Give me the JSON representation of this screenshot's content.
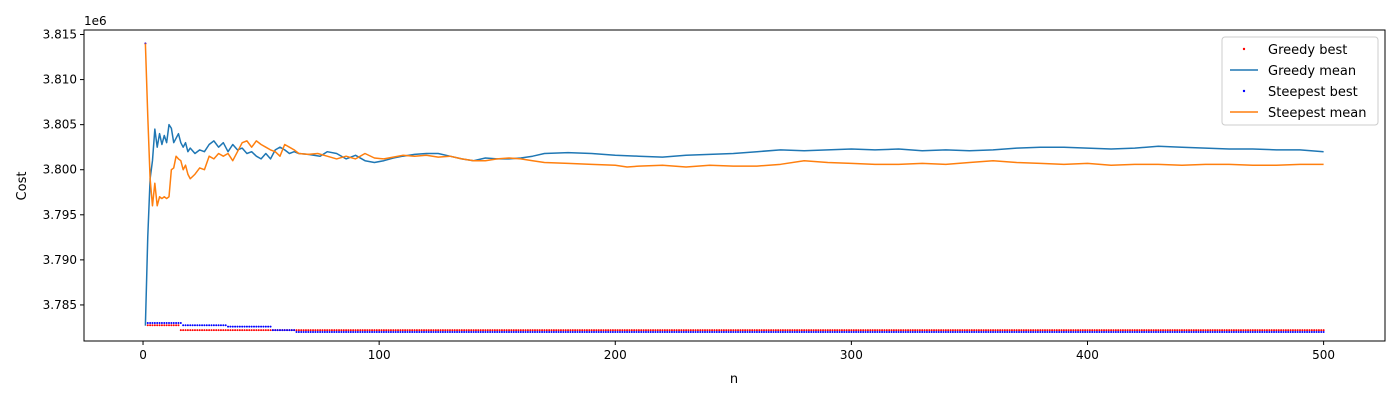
{
  "chart_data": {
    "type": "line",
    "title": "",
    "xlabel": "n",
    "ylabel": "Cost",
    "y_offset_label": "1e6",
    "xlim": [
      -25,
      526
    ],
    "ylim": [
      3.781,
      3.8155
    ],
    "x_ticks": [
      0,
      100,
      200,
      300,
      400,
      500
    ],
    "x_tick_labels": [
      "0",
      "100",
      "200",
      "300",
      "400",
      "500"
    ],
    "y_ticks": [
      3.785,
      3.79,
      3.795,
      3.8,
      3.805,
      3.81,
      3.815
    ],
    "y_tick_labels": [
      "3.785",
      "3.790",
      "3.795",
      "3.800",
      "3.805",
      "3.810",
      "3.815"
    ],
    "grid": false,
    "legend_position": "top-right",
    "series": [
      {
        "name": "Greedy best",
        "kind": "points",
        "color": "#ff0000",
        "segments": [
          {
            "x_from": 1,
            "x_to": 1,
            "y": 3.814
          },
          {
            "x_from": 2,
            "x_to": 15,
            "y": 3.78275
          },
          {
            "x_from": 16,
            "x_to": 500,
            "y": 3.7822
          }
        ]
      },
      {
        "name": "Greedy mean",
        "kind": "line",
        "color": "#1f77b4",
        "points": [
          [
            1,
            3.7827
          ],
          [
            2,
            3.7925
          ],
          [
            3,
            3.799
          ],
          [
            4,
            3.801
          ],
          [
            5,
            3.8045
          ],
          [
            6,
            3.8025
          ],
          [
            7,
            3.804
          ],
          [
            8,
            3.8028
          ],
          [
            9,
            3.8038
          ],
          [
            10,
            3.803
          ],
          [
            11,
            3.805
          ],
          [
            12,
            3.8046
          ],
          [
            13,
            3.803
          ],
          [
            14,
            3.8035
          ],
          [
            15,
            3.804
          ],
          [
            16,
            3.803
          ],
          [
            17,
            3.8025
          ],
          [
            18,
            3.803
          ],
          [
            19,
            3.802
          ],
          [
            20,
            3.8024
          ],
          [
            22,
            3.8018
          ],
          [
            24,
            3.8022
          ],
          [
            26,
            3.802
          ],
          [
            28,
            3.8028
          ],
          [
            30,
            3.8032
          ],
          [
            32,
            3.8025
          ],
          [
            34,
            3.803
          ],
          [
            36,
            3.802
          ],
          [
            38,
            3.8028
          ],
          [
            40,
            3.8022
          ],
          [
            42,
            3.8024
          ],
          [
            44,
            3.8018
          ],
          [
            46,
            3.802
          ],
          [
            48,
            3.8015
          ],
          [
            50,
            3.8012
          ],
          [
            52,
            3.8018
          ],
          [
            54,
            3.8012
          ],
          [
            56,
            3.8022
          ],
          [
            58,
            3.8025
          ],
          [
            60,
            3.8022
          ],
          [
            62,
            3.8018
          ],
          [
            64,
            3.802
          ],
          [
            66,
            3.8018
          ],
          [
            70,
            3.8017
          ],
          [
            75,
            3.8015
          ],
          [
            78,
            3.802
          ],
          [
            82,
            3.8018
          ],
          [
            86,
            3.8012
          ],
          [
            90,
            3.8016
          ],
          [
            94,
            3.801
          ],
          [
            98,
            3.8008
          ],
          [
            102,
            3.801
          ],
          [
            106,
            3.8013
          ],
          [
            110,
            3.8015
          ],
          [
            115,
            3.8017
          ],
          [
            120,
            3.8018
          ],
          [
            125,
            3.8018
          ],
          [
            130,
            3.8015
          ],
          [
            135,
            3.8012
          ],
          [
            140,
            3.801
          ],
          [
            145,
            3.8013
          ],
          [
            150,
            3.8012
          ],
          [
            155,
            3.8012
          ],
          [
            160,
            3.8013
          ],
          [
            165,
            3.8015
          ],
          [
            170,
            3.8018
          ],
          [
            180,
            3.8019
          ],
          [
            190,
            3.8018
          ],
          [
            200,
            3.8016
          ],
          [
            210,
            3.8015
          ],
          [
            220,
            3.8014
          ],
          [
            230,
            3.8016
          ],
          [
            240,
            3.8017
          ],
          [
            250,
            3.8018
          ],
          [
            260,
            3.802
          ],
          [
            270,
            3.8022
          ],
          [
            280,
            3.8021
          ],
          [
            290,
            3.8022
          ],
          [
            300,
            3.8023
          ],
          [
            310,
            3.8022
          ],
          [
            320,
            3.8023
          ],
          [
            330,
            3.8021
          ],
          [
            340,
            3.8022
          ],
          [
            350,
            3.8021
          ],
          [
            360,
            3.8022
          ],
          [
            370,
            3.8024
          ],
          [
            380,
            3.8025
          ],
          [
            390,
            3.8025
          ],
          [
            400,
            3.8024
          ],
          [
            410,
            3.8023
          ],
          [
            420,
            3.8024
          ],
          [
            430,
            3.8026
          ],
          [
            440,
            3.8025
          ],
          [
            450,
            3.8024
          ],
          [
            460,
            3.8023
          ],
          [
            470,
            3.8023
          ],
          [
            480,
            3.8022
          ],
          [
            490,
            3.8022
          ],
          [
            500,
            3.802
          ]
        ]
      },
      {
        "name": "Steepest best",
        "kind": "points",
        "color": "#0000ff",
        "segments": [
          {
            "x_from": 1,
            "x_to": 1,
            "y": 3.814
          },
          {
            "x_from": 2,
            "x_to": 16,
            "y": 3.783
          },
          {
            "x_from": 17,
            "x_to": 35,
            "y": 3.78275
          },
          {
            "x_from": 36,
            "x_to": 54,
            "y": 3.7826
          },
          {
            "x_from": 55,
            "x_to": 64,
            "y": 3.7822
          },
          {
            "x_from": 65,
            "x_to": 500,
            "y": 3.782
          }
        ]
      },
      {
        "name": "Steepest mean",
        "kind": "line",
        "color": "#ff7f0e",
        "points": [
          [
            1,
            3.814
          ],
          [
            2,
            3.806
          ],
          [
            3,
            3.799
          ],
          [
            4,
            3.796
          ],
          [
            5,
            3.7985
          ],
          [
            6,
            3.796
          ],
          [
            7,
            3.797
          ],
          [
            8,
            3.7968
          ],
          [
            9,
            3.797
          ],
          [
            10,
            3.7968
          ],
          [
            11,
            3.797
          ],
          [
            12,
            3.8
          ],
          [
            13,
            3.8002
          ],
          [
            14,
            3.8015
          ],
          [
            15,
            3.8012
          ],
          [
            16,
            3.801
          ],
          [
            17,
            3.8
          ],
          [
            18,
            3.8005
          ],
          [
            19,
            3.7995
          ],
          [
            20,
            3.799
          ],
          [
            22,
            3.7995
          ],
          [
            24,
            3.8002
          ],
          [
            26,
            3.8
          ],
          [
            28,
            3.8015
          ],
          [
            30,
            3.8012
          ],
          [
            32,
            3.8018
          ],
          [
            34,
            3.8015
          ],
          [
            36,
            3.8018
          ],
          [
            38,
            3.801
          ],
          [
            40,
            3.802
          ],
          [
            42,
            3.803
          ],
          [
            44,
            3.8032
          ],
          [
            46,
            3.8025
          ],
          [
            48,
            3.8032
          ],
          [
            50,
            3.8028
          ],
          [
            52,
            3.8025
          ],
          [
            54,
            3.8022
          ],
          [
            56,
            3.802
          ],
          [
            58,
            3.8015
          ],
          [
            60,
            3.8028
          ],
          [
            62,
            3.8025
          ],
          [
            64,
            3.8022
          ],
          [
            66,
            3.8018
          ],
          [
            70,
            3.8017
          ],
          [
            74,
            3.8018
          ],
          [
            78,
            3.8015
          ],
          [
            82,
            3.8012
          ],
          [
            86,
            3.8015
          ],
          [
            90,
            3.8012
          ],
          [
            94,
            3.8018
          ],
          [
            98,
            3.8013
          ],
          [
            102,
            3.8012
          ],
          [
            106,
            3.8014
          ],
          [
            110,
            3.8016
          ],
          [
            115,
            3.8015
          ],
          [
            120,
            3.8016
          ],
          [
            125,
            3.8014
          ],
          [
            130,
            3.8015
          ],
          [
            135,
            3.8012
          ],
          [
            140,
            3.801
          ],
          [
            145,
            3.801
          ],
          [
            150,
            3.8012
          ],
          [
            155,
            3.8013
          ],
          [
            160,
            3.8012
          ],
          [
            165,
            3.801
          ],
          [
            170,
            3.8008
          ],
          [
            180,
            3.8007
          ],
          [
            190,
            3.8006
          ],
          [
            200,
            3.8005
          ],
          [
            205,
            3.8003
          ],
          [
            210,
            3.8004
          ],
          [
            220,
            3.8005
          ],
          [
            230,
            3.8003
          ],
          [
            240,
            3.8005
          ],
          [
            250,
            3.8004
          ],
          [
            260,
            3.8004
          ],
          [
            270,
            3.8006
          ],
          [
            280,
            3.801
          ],
          [
            290,
            3.8008
          ],
          [
            300,
            3.8007
          ],
          [
            310,
            3.8006
          ],
          [
            320,
            3.8006
          ],
          [
            330,
            3.8007
          ],
          [
            340,
            3.8006
          ],
          [
            350,
            3.8008
          ],
          [
            360,
            3.801
          ],
          [
            370,
            3.8008
          ],
          [
            380,
            3.8007
          ],
          [
            390,
            3.8006
          ],
          [
            400,
            3.8007
          ],
          [
            410,
            3.8005
          ],
          [
            420,
            3.8006
          ],
          [
            430,
            3.8006
          ],
          [
            440,
            3.8005
          ],
          [
            450,
            3.8006
          ],
          [
            460,
            3.8006
          ],
          [
            470,
            3.8005
          ],
          [
            480,
            3.8005
          ],
          [
            490,
            3.8006
          ],
          [
            500,
            3.8006
          ]
        ]
      }
    ]
  }
}
